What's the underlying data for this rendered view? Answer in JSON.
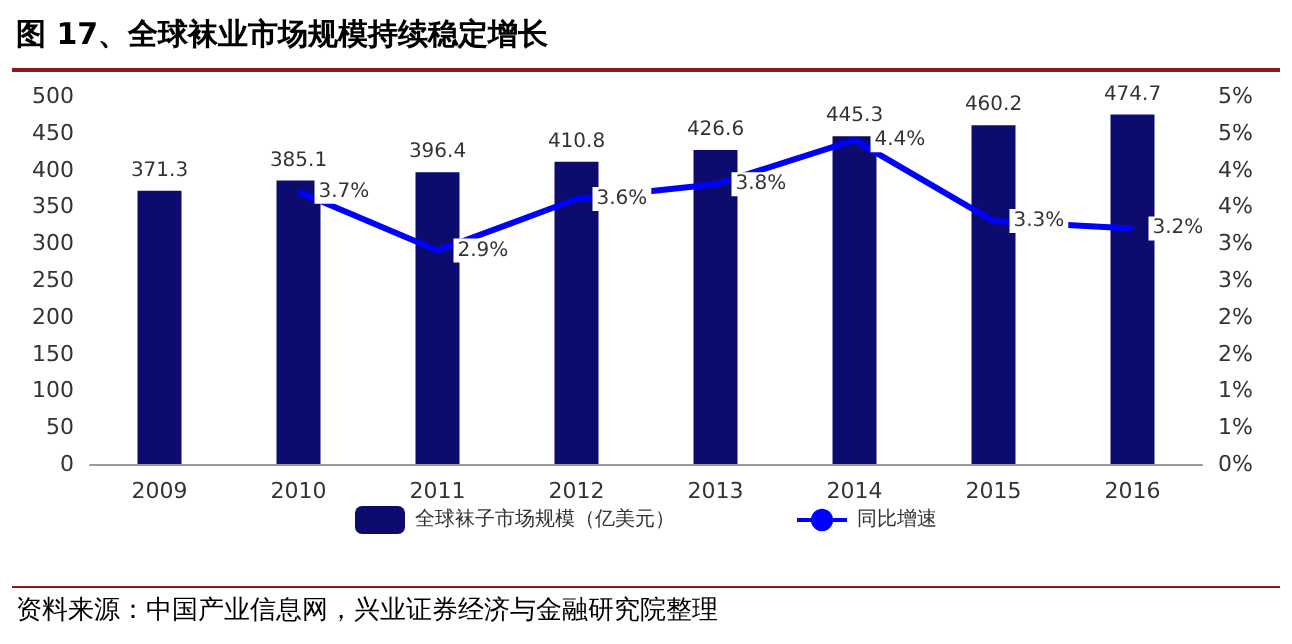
{
  "chart_data": {
    "type": "bar",
    "title": "图 17、全球袜业市场规模持续稳定增长",
    "categories": [
      "2009",
      "2010",
      "2011",
      "2012",
      "2013",
      "2014",
      "2015",
      "2016"
    ],
    "series": [
      {
        "name": "全球袜子市场规模（亿美元）",
        "color": "#0c0c6e",
        "values": [
          371.3,
          385.1,
          396.4,
          410.8,
          426.6,
          445.3,
          460.2,
          474.7
        ],
        "data_labels": true
      },
      {
        "name": "同比增速",
        "type": "line",
        "axis": "y2",
        "color": "#0000ff",
        "values": [
          null,
          3.7,
          2.9,
          3.6,
          3.8,
          4.4,
          3.3,
          3.2
        ],
        "value_labels": [
          null,
          "3.7%",
          "2.9%",
          "3.6%",
          "3.8%",
          "4.4%",
          "3.3%",
          "3.2%"
        ],
        "marker": "none"
      }
    ],
    "ylim": [
      0,
      500
    ],
    "yticks": [
      0,
      50,
      100,
      150,
      200,
      250,
      300,
      350,
      400,
      450,
      500
    ],
    "y2lim": [
      0,
      5
    ],
    "y2ticks": [
      {
        "value": 0,
        "label": "0%"
      },
      {
        "value": 0.5,
        "label": "1%"
      },
      {
        "value": 1,
        "label": "1%"
      },
      {
        "value": 1.5,
        "label": "2%"
      },
      {
        "value": 2,
        "label": "2%"
      },
      {
        "value": 2.5,
        "label": "3%"
      },
      {
        "value": 3,
        "label": "3%"
      },
      {
        "value": 3.5,
        "label": "4%"
      },
      {
        "value": 4,
        "label": "4%"
      },
      {
        "value": 4.5,
        "label": "5%"
      },
      {
        "value": 5,
        "label": "5%"
      }
    ],
    "grid": false,
    "legend": "bottom",
    "annotations": [
      "资料来源：中国产业信息网，兴业证券经济与金融研究院整理"
    ]
  }
}
